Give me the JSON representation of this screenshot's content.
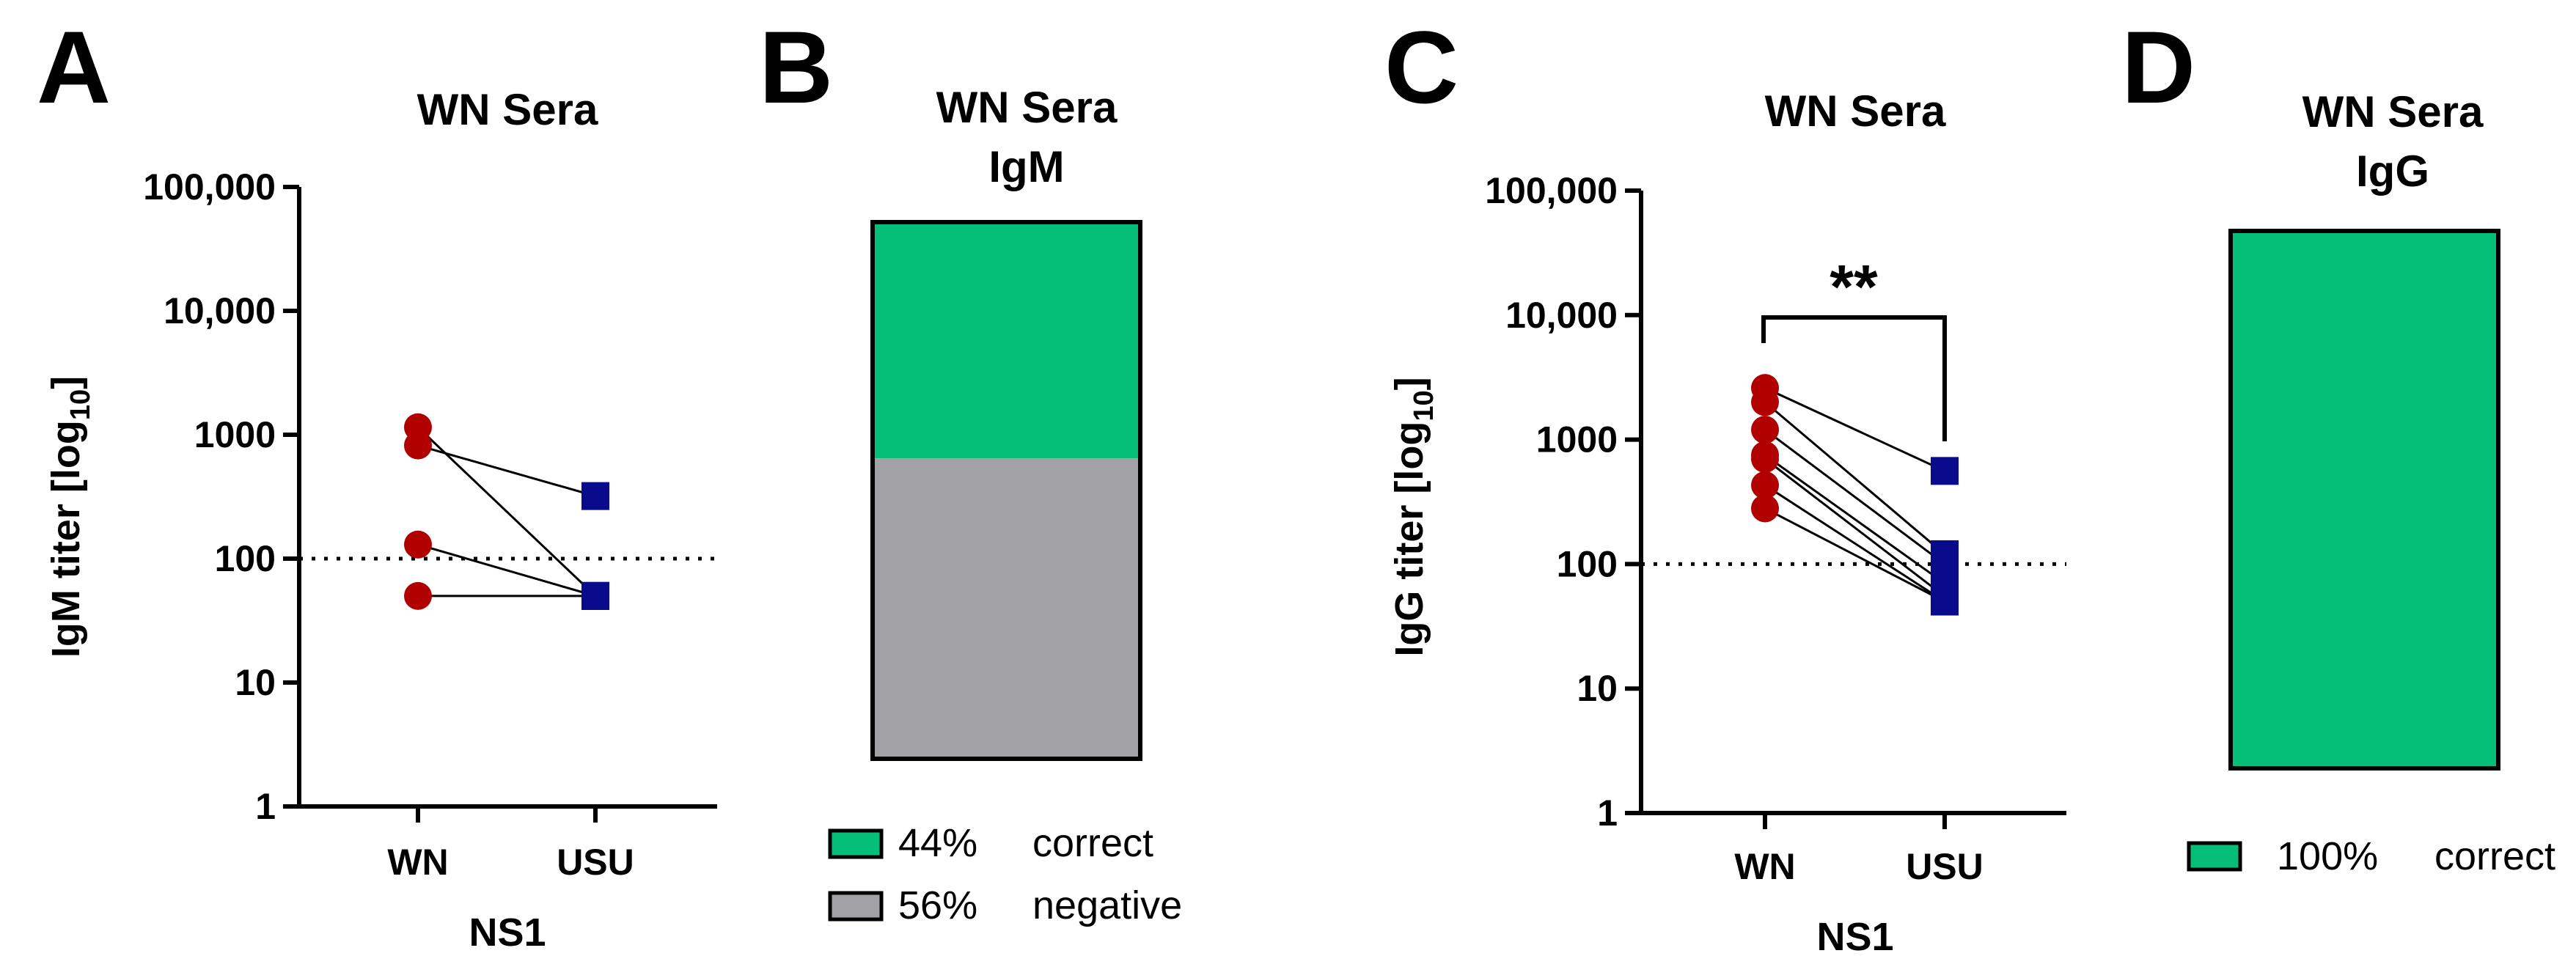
{
  "chart_data": [
    {
      "panel": "A",
      "type": "scatter",
      "title": "WN Sera",
      "ylabel": "IgM titer [log10]",
      "xlabel": "NS1",
      "categories": [
        "WN",
        "USU"
      ],
      "yscale": "log",
      "ylim": [
        1,
        100000
      ],
      "yticks": [
        "1",
        "10",
        "100",
        "1000",
        "10,000",
        "100,000"
      ],
      "threshold": 100,
      "series": [
        {
          "name": "WN",
          "color": "#b00000",
          "marker": "circle"
        },
        {
          "name": "USU",
          "color": "#0a0a8c",
          "marker": "square"
        }
      ],
      "pairs": [
        [
          1150,
          50
        ],
        [
          820,
          320
        ],
        [
          130,
          50
        ],
        [
          50,
          50
        ]
      ]
    },
    {
      "panel": "B",
      "type": "bar",
      "title": [
        "WN Sera",
        "IgM"
      ],
      "segments": [
        {
          "label": "correct",
          "percent_text": "44%",
          "value": 44,
          "color": "#05bf78"
        },
        {
          "label": "negative",
          "percent_text": "56%",
          "value": 56,
          "color": "#a2a2a6"
        }
      ]
    },
    {
      "panel": "C",
      "type": "scatter",
      "title": "WN Sera",
      "ylabel": "IgG titer [log10]",
      "xlabel": "NS1",
      "categories": [
        "WN",
        "USU"
      ],
      "yscale": "log",
      "ylim": [
        1,
        100000
      ],
      "yticks": [
        "1",
        "10",
        "100",
        "1000",
        "10,000",
        "100,000"
      ],
      "threshold": 100,
      "significance": "**",
      "series": [
        {
          "name": "WN",
          "color": "#b00000",
          "marker": "circle"
        },
        {
          "name": "USU",
          "color": "#0a0a8c",
          "marker": "square"
        }
      ],
      "pairs": [
        [
          2600,
          560
        ],
        [
          2000,
          120
        ],
        [
          1200,
          100
        ],
        [
          750,
          70
        ],
        [
          700,
          55
        ],
        [
          430,
          50
        ],
        [
          280,
          50
        ]
      ]
    },
    {
      "panel": "D",
      "type": "bar",
      "title": [
        "WN Sera",
        "IgG"
      ],
      "segments": [
        {
          "label": "correct",
          "percent_text": "100%",
          "value": 100,
          "color": "#05bf78"
        }
      ]
    }
  ]
}
